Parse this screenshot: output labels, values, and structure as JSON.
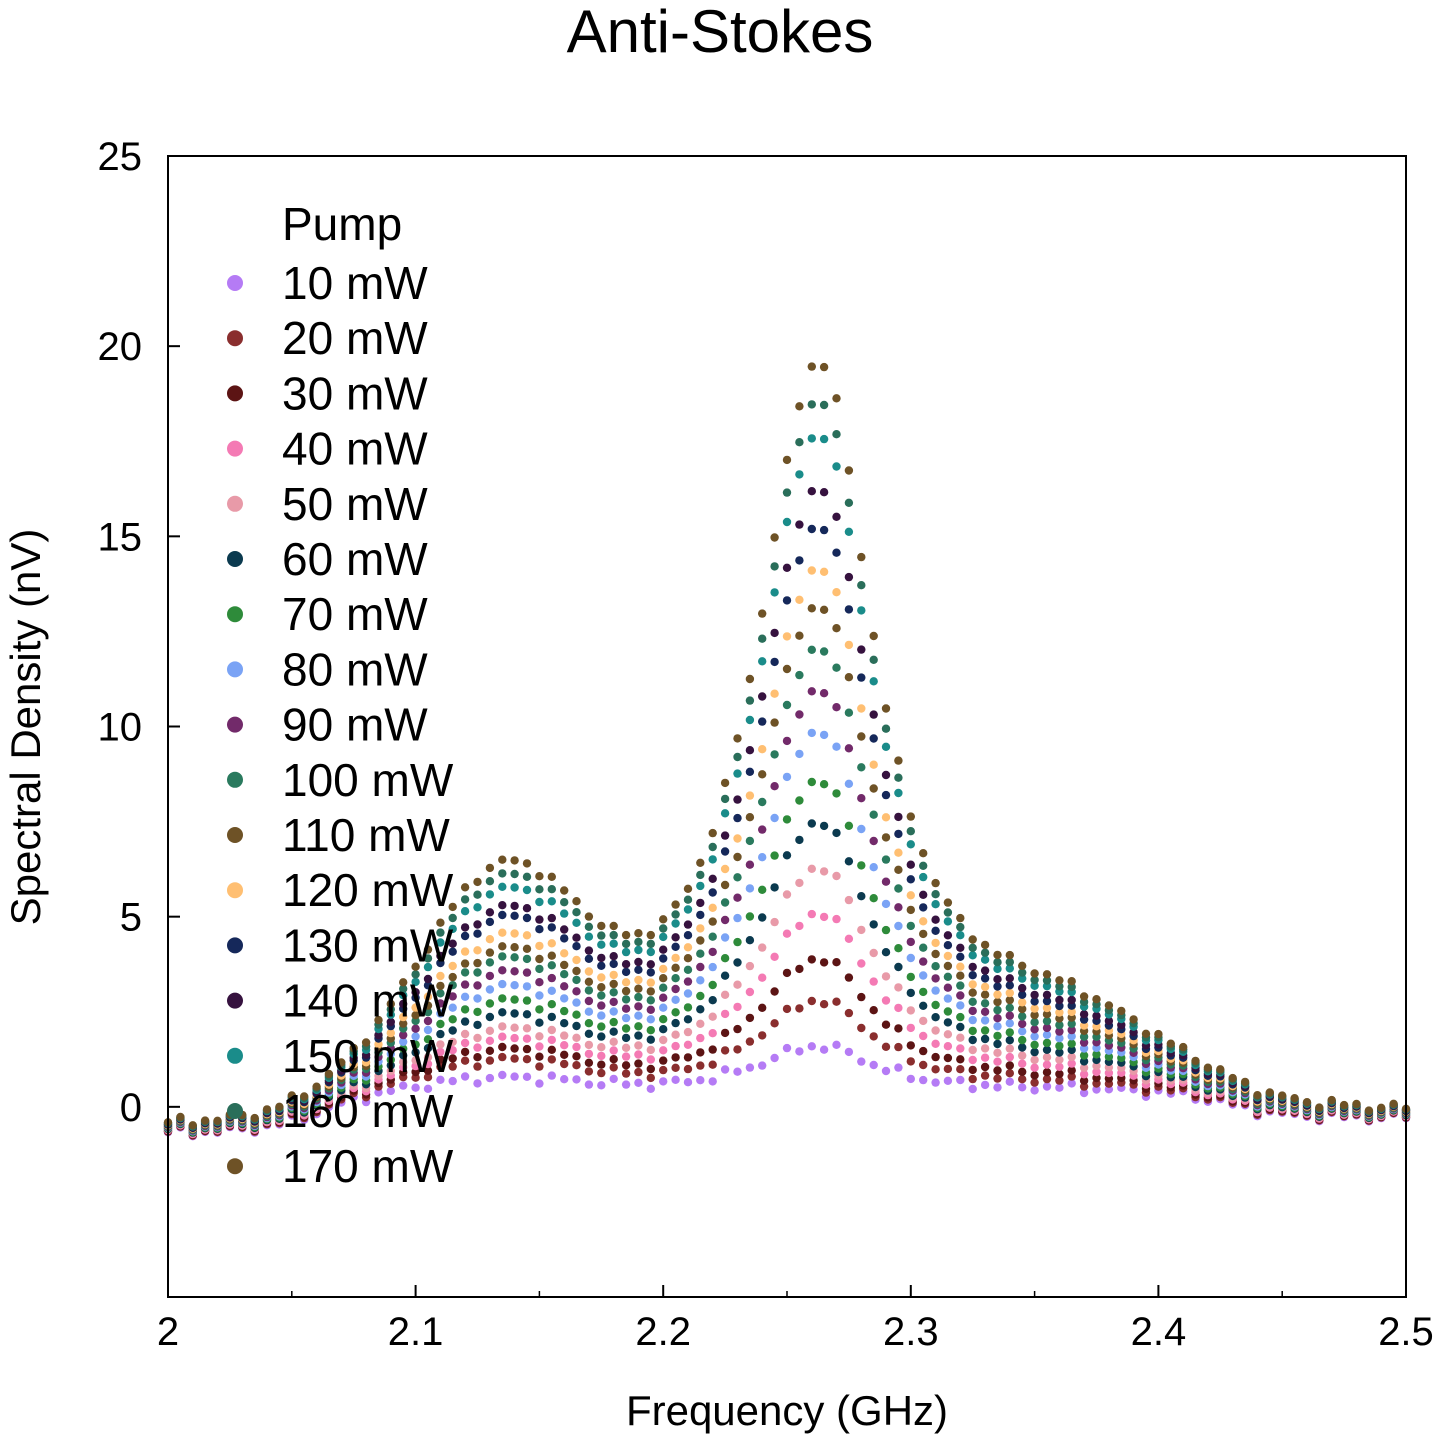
{
  "chart_data": {
    "type": "scatter",
    "title": "Anti-Stokes",
    "xlabel": "Frequency (GHz)",
    "ylabel": "Spectral Density (nV)",
    "xlim": [
      2.0,
      2.5
    ],
    "ylim": [
      -5,
      25
    ],
    "xticks": [
      "2",
      "2.1",
      "2.2",
      "2.3",
      "2.4",
      "2.5"
    ],
    "yticks": [
      "0",
      "5",
      "10",
      "15",
      "20",
      "25"
    ],
    "grid": false,
    "legend": {
      "title": "Pump",
      "placement": "top-left"
    },
    "x_range_sampled": [
      2.0,
      2.5
    ],
    "x_step": 0.005,
    "shape_notes": "Each series follows a common profile: a low baseline near -0.7 at 2.0 GHz, a shoulder around 2.13 GHz, a dominant peak at 2.263 GHz, then decay to about 0.3 by 2.40 GHz. Amplitudes listed are peak and shoulder heights in nV.",
    "series": [
      {
        "name": "10 mW",
        "color": "#b57bf5",
        "peak": 1.3,
        "shoulder": 0.4
      },
      {
        "name": "20 mW",
        "color": "#8a2e2e",
        "peak": 2.5,
        "shoulder": 0.8
      },
      {
        "name": "30 mW",
        "color": "#5c1414",
        "peak": 3.6,
        "shoulder": 1.0
      },
      {
        "name": "40 mW",
        "color": "#f47ab4",
        "peak": 4.8,
        "shoulder": 1.2
      },
      {
        "name": "50 mW",
        "color": "#e89aa8",
        "peak": 6.0,
        "shoulder": 1.4
      },
      {
        "name": "60 mW",
        "color": "#0b3a4f",
        "peak": 7.2,
        "shoulder": 1.7
      },
      {
        "name": "70 mW",
        "color": "#2e8b3a",
        "peak": 8.3,
        "shoulder": 2.0
      },
      {
        "name": "80 mW",
        "color": "#7aa3f5",
        "peak": 9.6,
        "shoulder": 2.3
      },
      {
        "name": "90 mW",
        "color": "#722a6a",
        "peak": 10.7,
        "shoulder": 2.6
      },
      {
        "name": "100 mW",
        "color": "#2a7a5e",
        "peak": 11.8,
        "shoulder": 2.9
      },
      {
        "name": "110 mW",
        "color": "#6e5226",
        "peak": 12.9,
        "shoulder": 3.1
      },
      {
        "name": "120 mW",
        "color": "#ffbf72",
        "peak": 13.9,
        "shoulder": 3.4
      },
      {
        "name": "130 mW",
        "color": "#15285a",
        "peak": 15.0,
        "shoulder": 3.8
      },
      {
        "name": "140 mW",
        "color": "#36123f",
        "peak": 16.0,
        "shoulder": 4.0
      },
      {
        "name": "150 mW",
        "color": "#1a8c8a",
        "peak": 17.4,
        "shoulder": 4.4
      },
      {
        "name": "160 mW",
        "color": "#2a6e5a",
        "peak": 18.3,
        "shoulder": 4.7
      },
      {
        "name": "170 mW",
        "color": "#6e5226",
        "peak": 19.3,
        "shoulder": 5.0
      }
    ]
  }
}
